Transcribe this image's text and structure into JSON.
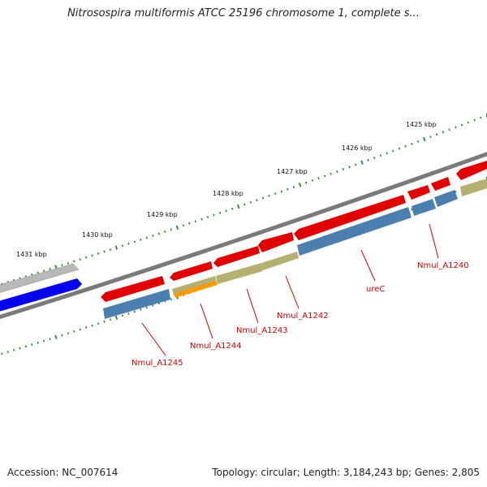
{
  "title": "Nitrosospira multiformis ATCC 25196 chromosome 1, complete s...",
  "footer": {
    "accession": "Accession: NC_007614",
    "summary": "Topology: circular; Length: 3,184,243 bp; Genes: 2,805"
  },
  "ruler_labels": [
    "1425 kbp",
    "1426 kbp",
    "1427 kbp",
    "1428 kbp",
    "1429 kbp",
    "1430 kbp",
    "1431 kbp"
  ],
  "gene_labels": [
    "Nmul_A1240",
    "ureC",
    "Nmul_A1242",
    "Nmul_A1243",
    "Nmul_A1244",
    "Nmul_A1245"
  ],
  "colors": {
    "backbone": "#7a7a7a",
    "cds": "#e00000",
    "gene": "#4a7fb0",
    "olive": "#b5b070",
    "orange": "#ff9a00",
    "highlight_gene": "#0000ee",
    "highlight_cds": "#b8b8b8",
    "tick": "#228b22"
  }
}
